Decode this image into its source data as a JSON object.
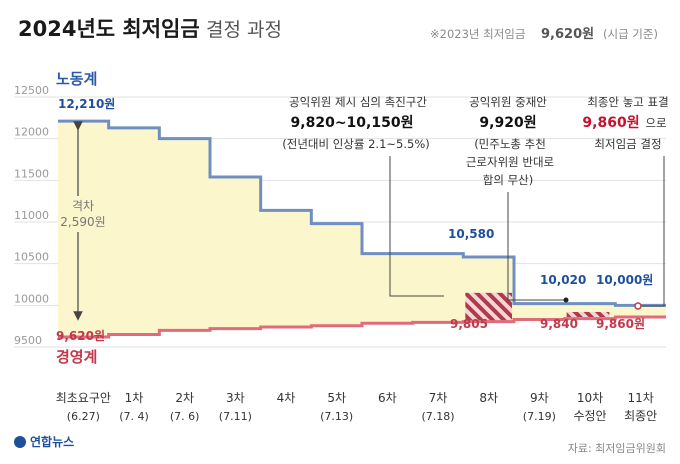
{
  "header": {
    "title": "2024년도 최저임금",
    "subtitle": "결정 과정",
    "note_prefix": "※2023년 최저임금",
    "note_value": "9,620원",
    "note_suffix": "(시급 기준)"
  },
  "footer": {
    "logo": "연합뉴스",
    "source": "자료: 최저임금위원회"
  },
  "annotations": {
    "range_title": "공익위원 제시 심의 촉진구간",
    "range_value": "9,820~10,150원",
    "range_detail": "(전년대비 인상률 2.1~5.5%)",
    "mediation_title": "공익위원 중재안",
    "mediation_value": "9,920원",
    "mediation_detail_1": "(민주노총 추천",
    "mediation_detail_2": "근로자위원 반대로",
    "mediation_detail_3": "합의 무산)",
    "final_line1": "최종안 놓고 표결",
    "final_value": "9,860원",
    "final_suffix": "으로",
    "final_line2": "최저임금 결정",
    "gap_label": "격차",
    "gap_value": "2,590원"
  },
  "colors": {
    "labor": "#6f8fc2",
    "management": "#e06b7a",
    "fill": "#fbf6cc",
    "hatch": "#b03a48"
  },
  "chart_data": {
    "type": "line",
    "title": "2024년도 최저임금 결정 과정",
    "categories": [
      "최초요구안",
      "1차",
      "2차",
      "3차",
      "4차",
      "5차",
      "6차",
      "7차",
      "8차",
      "9차",
      "10차",
      "11차"
    ],
    "category_dates": [
      "(6.27)",
      "(7. 4)",
      "(7. 6)",
      "(7.11)",
      "",
      "(7.13)",
      "",
      "(7.18)",
      "",
      "(7.19)",
      "수정안",
      "최종안"
    ],
    "ylim": [
      9500,
      12500
    ],
    "yticks": [
      9500,
      10000,
      10500,
      11000,
      11500,
      12000,
      12500
    ],
    "series": [
      {
        "name": "노동계",
        "values": [
          12210,
          12130,
          12000,
          11540,
          11140,
          10980,
          10620,
          10620,
          10580,
          10020,
          10020,
          10000
        ]
      },
      {
        "name": "경영계",
        "values": [
          9620,
          9650,
          9700,
          9720,
          9740,
          9755,
          9785,
          9795,
          9805,
          9830,
          9840,
          9860
        ]
      }
    ],
    "data_labels": {
      "labor_first": "12,210원",
      "labor_8": "10,580",
      "labor_10": "10,020",
      "labor_11": "10,000원",
      "mgmt_first": "9,620원",
      "mgmt_8": "9,805",
      "mgmt_10": "9,840",
      "mgmt_11": "9,860원"
    },
    "promotion_range": [
      9820,
      10150
    ],
    "mediation": 9920,
    "final": 9860,
    "gap": 2590,
    "grid": true
  }
}
